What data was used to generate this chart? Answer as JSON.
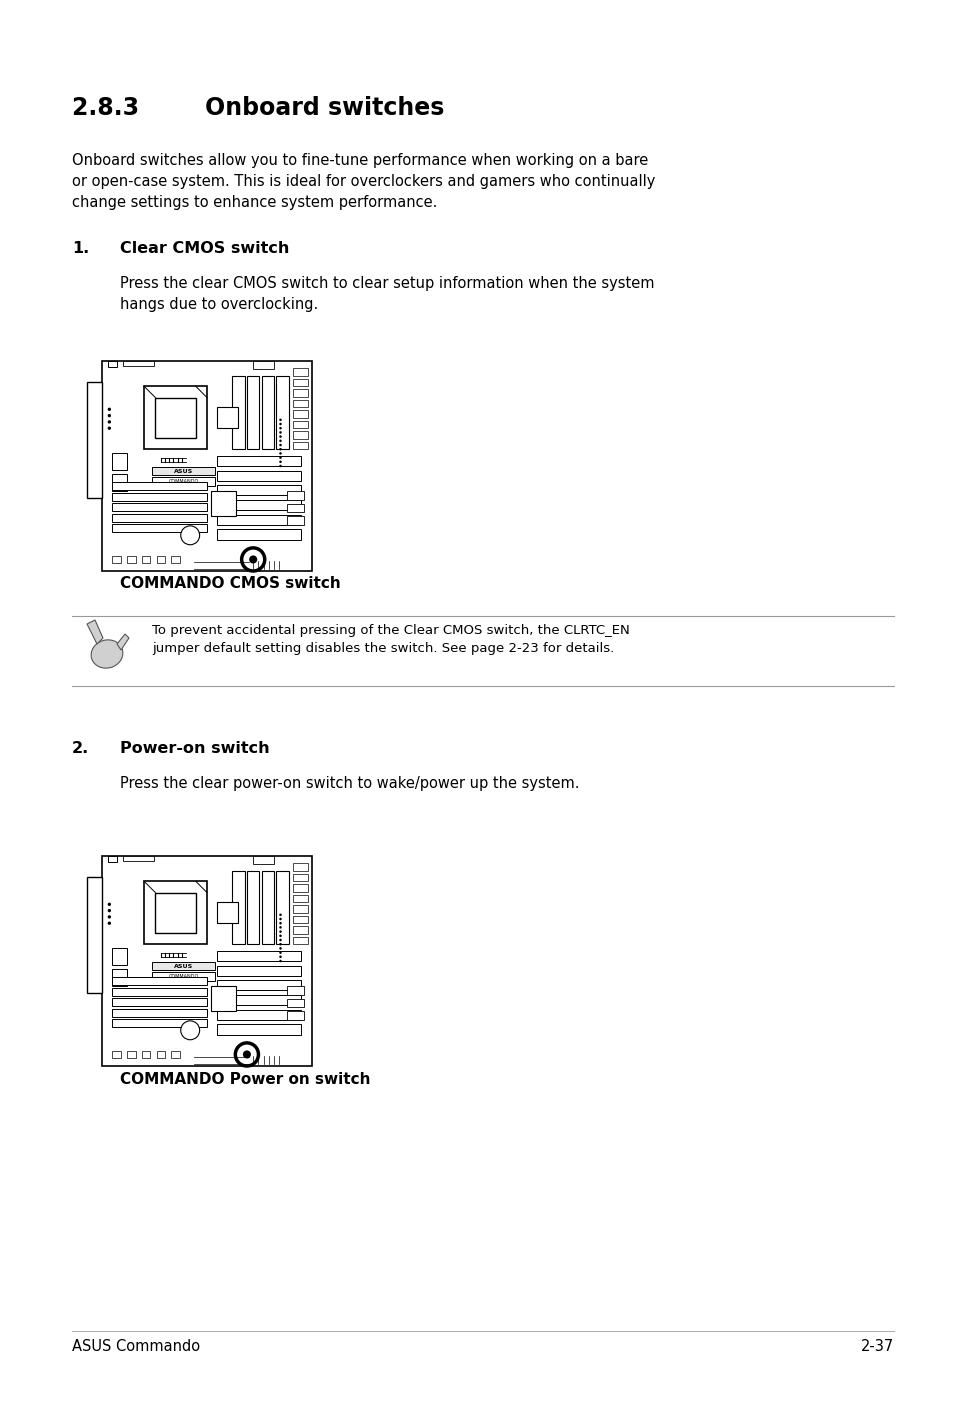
{
  "title": "2.8.3        Onboard switches",
  "intro_text": "Onboard switches allow you to fine-tune performance when working on a bare\nor open-case system. This is ideal for overclockers and gamers who continually\nchange settings to enhance system performance.",
  "item1_num": "1.",
  "item1_title": "Clear CMOS switch",
  "item1_desc": "Press the clear CMOS switch to clear setup information when the system\nhangs due to overclocking.",
  "item1_caption": "COMMANDO CMOS switch",
  "note_text": "To prevent accidental pressing of the Clear CMOS switch, the CLRTC_EN\njumper default setting disables the switch. See page 2-23 for details.",
  "item2_num": "2.",
  "item2_title": "Power-on switch",
  "item2_desc": "Press the clear power-on switch to wake/power up the system.",
  "item2_caption": "COMMANDO Power on switch",
  "footer_left": "ASUS Commando",
  "footer_right": "2-37",
  "bg_color": "#ffffff",
  "text_color": "#000000",
  "title_fontsize": 17,
  "body_fontsize": 10.5,
  "caption_fontsize": 11,
  "note_fontsize": 9.5
}
